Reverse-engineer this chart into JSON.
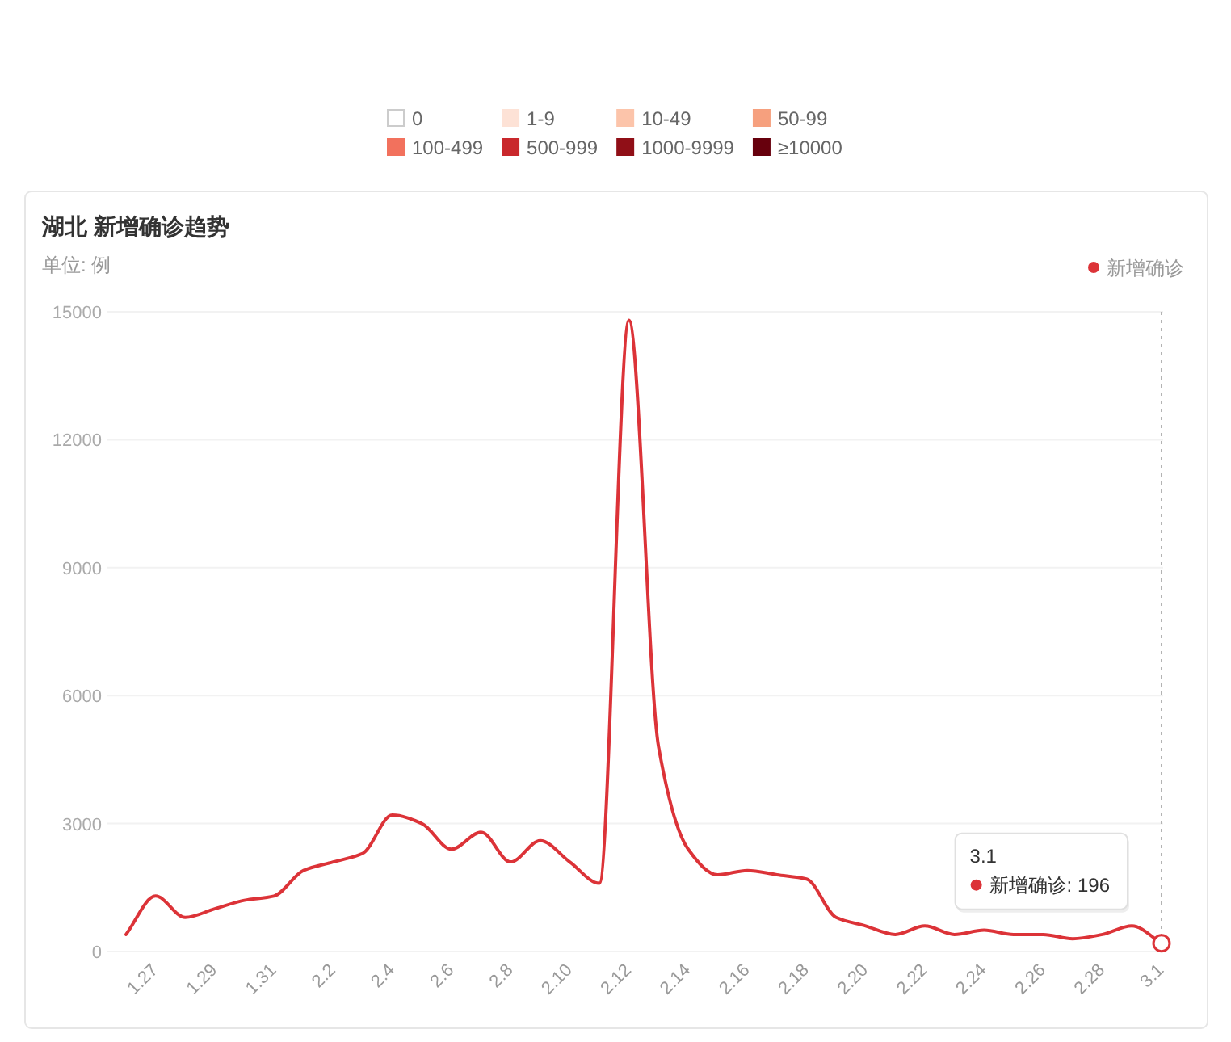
{
  "chart_data": [
    {
      "type": "other",
      "categories": [
        "0",
        "1-9",
        "10-49",
        "50-99",
        "100-499",
        "500-999",
        "1000-9999",
        "≥10000"
      ],
      "colors": [
        "#ffffff",
        "#fde2d6",
        "#fcc4aa",
        "#f6a07e",
        "#f2715d",
        "#c9282c",
        "#900f17",
        "#67000d"
      ]
    },
    {
      "type": "line",
      "title": "湖北 新增确诊趋势",
      "subtitle": "单位: 例",
      "categories": [
        null,
        "1.27",
        null,
        "1.29",
        null,
        "1.31",
        null,
        "2.2",
        null,
        "2.4",
        null,
        "2.6",
        null,
        "2.8",
        null,
        "2.10",
        null,
        "2.12",
        null,
        "2.14",
        null,
        "2.16",
        null,
        "2.18",
        null,
        "2.20",
        null,
        "2.22",
        null,
        "2.24",
        null,
        "2.26",
        null,
        "2.28",
        null,
        "3.1"
      ],
      "series": [
        {
          "name": "新增确诊",
          "color": "#dc3338",
          "values": [
            400,
            1300,
            800,
            1000,
            1200,
            1300,
            1900,
            2100,
            2300,
            3200,
            3000,
            2400,
            2800,
            2100,
            2600,
            2100,
            1600,
            14800,
            4800,
            2400,
            1800,
            1900,
            1800,
            1700,
            800,
            600,
            400,
            600,
            400,
            500,
            400,
            400,
            300,
            400,
            600,
            196
          ]
        }
      ],
      "ylim": [
        0,
        15000
      ],
      "yticks": [
        0,
        3000,
        6000,
        9000,
        12000,
        15000
      ],
      "grid": "y",
      "legend": "top right",
      "marker": "none",
      "annotations": [
        "3.1\n新增确诊: 196"
      ]
    }
  ]
}
